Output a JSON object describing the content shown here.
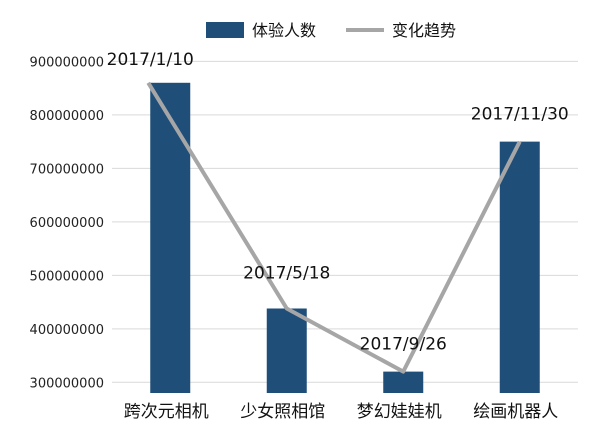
{
  "chart_data": {
    "type": "bar",
    "categories": [
      "跨次元相机",
      "少女照相馆",
      "梦幻娃娃机",
      "绘画机器人"
    ],
    "series": [
      {
        "name": "体验人数",
        "kind": "bar",
        "color": "#1f4e79",
        "values": [
          860000000,
          438000000,
          320000000,
          750000000
        ]
      },
      {
        "name": "变化趋势",
        "kind": "line",
        "color": "#a6a6a6",
        "values": [
          860000000,
          438000000,
          320000000,
          750000000
        ]
      }
    ],
    "data_labels": [
      "2017/1/10",
      "2017/5/18",
      "2017/9/26",
      "2017/11/30"
    ],
    "y_ticks": [
      300000000,
      400000000,
      500000000,
      600000000,
      700000000,
      800000000,
      900000000
    ],
    "ylim": [
      280000000,
      940000000
    ],
    "grid": true,
    "legend": "top"
  }
}
